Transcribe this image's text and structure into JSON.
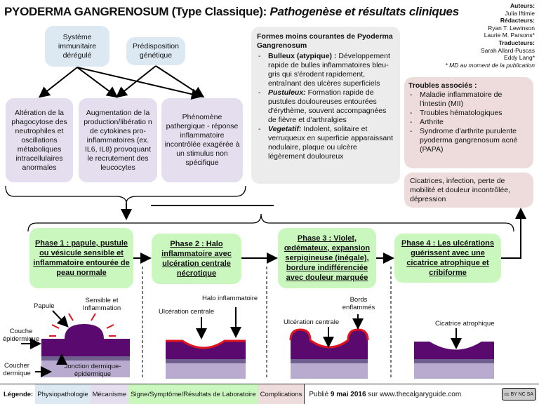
{
  "title": {
    "main": "PYODERMA GANGRENOSUM (Type Classique): ",
    "italic": "Pathogenèse et résultats cliniques"
  },
  "credits": {
    "authors_label": "Auteurs:",
    "authors": "Julia Iftimie",
    "editors_label": "Rédacteurs:",
    "editors": [
      "Ryan T. Lewinson",
      "Laurie M. Parsons*"
    ],
    "translators_label": "Traducteurs:",
    "translators": [
      "Sarah Allard-Puscas",
      "Eddy Lang*"
    ],
    "note": "* MD au moment de la publication"
  },
  "physio": {
    "immune": "Système immunitaire dérégulé",
    "genetic": "Prédisposition génétique"
  },
  "mechanisms": [
    "Altération de la phagocytose des neutrophiles et oscillations métaboliques intracellulaires anormales",
    "Augmentation de la production/libératio n de cytokines pro-inflammatoires (ex. IL6, IL8) provoquant le recrutement des leucocytes",
    "Phénomène pathergique - réponse inflammatoire incontrôlée exagérée à un stimulus non spécifique"
  ],
  "variants": {
    "title": "Formes moins courantes de Pyoderma Gangrenosum",
    "items": [
      {
        "term": "Bulleux (atypique) :",
        "text": " Développement rapide de bulles inflammatoires bleu-gris qui s'érodent rapidement, entraînant des ulcères superficiels"
      },
      {
        "term": "Pustuleux:",
        "text": " Formation rapide de pustules douloureuses entourées d'érythème, souvent accompagnées de fièvre et d'arthralgies"
      },
      {
        "term": "Vegetatif:",
        "text": " Indolent, solitaire et verruqueux en superficie apparaissant nodulaire, plaque ou ulcère légèrement douloureux"
      }
    ]
  },
  "associated": {
    "title": "Troubles associés :",
    "items": [
      "Maladie inflammatoire de l'intestin (MII)",
      "Troubles hématologiques",
      "Arthrite",
      "Syndrome d'arthrite purulente pyoderma gangrenosum acné (PAPA)"
    ]
  },
  "complications": "Cicatrices, infection, perte de mobilité et douleur incontrôlée, dépression",
  "phases": [
    "Phase 1 : papule, pustule ou vésicule sensible  et inflammatoire entourée de peau normale",
    "Phase 2 : Halo inflammatoire avec ulcération centrale nécrotique",
    "Phase 3 : Violet, œdémateux, expansion serpigineuse (inégale), bordure indifférenciée avec douleur marquée",
    "Phase 4 : Les ulcérations guérissent avec une cicatrice atrophique et cribiforme"
  ],
  "illustration_labels": {
    "papule": "Papule",
    "sensible": "Sensible  et Inflammation",
    "couche_epi": "Couche épidermique",
    "couche_derm": "Coucher dermique",
    "jonction": "Jonction dermique-épidermique",
    "ulc2": "Ulcération centrale",
    "halo": "Halo inflammatoire",
    "ulc3": "Ulcération centrale",
    "bords": "Bords enflammés",
    "cicatrice": "Cicatrice atrophique"
  },
  "legend": {
    "label": "Légende:",
    "items": [
      "Physiopathologie",
      "Mécanisme",
      "Signe/Symptôme/Résultats de Laboratoire",
      "Complications"
    ],
    "published_prefix": "Publié ",
    "published_date": "9 mai 2016",
    "published_suffix": " sur www.thecalgaryguide.com",
    "license": "cc BY NC SA"
  },
  "colors": {
    "physio": "#dce9f3",
    "mechanism": "#e4deee",
    "sign": "#c9f7bd",
    "complication": "#eedcdc",
    "skin_epidermis": "#5a0a6e",
    "skin_dermis": "#b9abcf",
    "inflammation": "#e0141e"
  }
}
